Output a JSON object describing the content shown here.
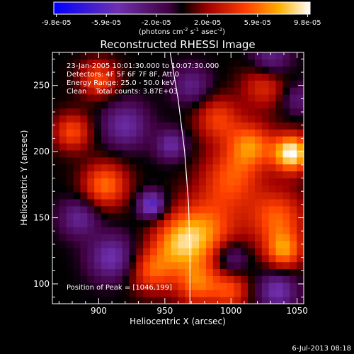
{
  "chart_data": {
    "type": "heatmap",
    "title": "Reconstructed RHESSI Image",
    "xlabel": "Heliocentric X (arcsec)",
    "ylabel": "Heliocentric Y (arcsec)",
    "xlim": [
      865,
      1055
    ],
    "ylim": [
      85,
      275
    ],
    "x_ticks": [
      900,
      950,
      1000,
      1050
    ],
    "y_ticks": [
      100,
      150,
      200,
      250
    ],
    "colorbar": {
      "tick_labels": [
        "-9.8e-05",
        "-5.9e-05",
        "-2.0e-05",
        "2.0e-05",
        "5.9e-05",
        "9.8e-05"
      ],
      "tick_values": [
        -9.8e-05,
        -5.9e-05,
        -2e-05,
        2e-05,
        5.9e-05,
        9.8e-05
      ],
      "units_base": "(photons cm",
      "units_exp1": "-2",
      "units_mid": " s",
      "units_exp2": "-1",
      "units_end": " asec",
      "units_exp3": "-2",
      "units_close": ")"
    },
    "info_lines": [
      "23-Jan-2005 10:01:30.000 to 10:07:30.000",
      "Detectors: 4F 5F 6F 7F 8F, Att 0",
      "Energy Range: 25.0 - 50.0 keV",
      "Clean    Total counts: 3.87E+03"
    ],
    "peak_label": "Position of Peak = [1046,199]",
    "peak_position": [
      1046,
      199
    ],
    "limb_curve": [
      [
        954,
        275
      ],
      [
        960,
        240
      ],
      [
        965,
        200
      ],
      [
        968,
        160
      ],
      [
        969,
        120
      ],
      [
        969,
        85
      ]
    ],
    "sources": [
      {
        "x": 1046,
        "y": 199,
        "sigma": 10,
        "amp": 1.0
      },
      {
        "x": 1015,
        "y": 205,
        "sigma": 12,
        "amp": 0.6
      },
      {
        "x": 1035,
        "y": 150,
        "sigma": 15,
        "amp": 0.55
      },
      {
        "x": 1040,
        "y": 125,
        "sigma": 10,
        "amp": 0.6
      },
      {
        "x": 1000,
        "y": 180,
        "sigma": 16,
        "amp": 0.5
      },
      {
        "x": 980,
        "y": 140,
        "sigma": 18,
        "amp": 0.6
      },
      {
        "x": 960,
        "y": 130,
        "sigma": 14,
        "amp": 0.55
      },
      {
        "x": 940,
        "y": 110,
        "sigma": 12,
        "amp": 0.5
      },
      {
        "x": 905,
        "y": 175,
        "sigma": 12,
        "amp": 0.6
      },
      {
        "x": 880,
        "y": 215,
        "sigma": 10,
        "amp": 0.5
      },
      {
        "x": 900,
        "y": 255,
        "sigma": 10,
        "amp": 0.5
      },
      {
        "x": 990,
        "y": 225,
        "sigma": 12,
        "amp": 0.45
      },
      {
        "x": 975,
        "y": 100,
        "sigma": 12,
        "amp": 0.55
      },
      {
        "x": 1000,
        "y": 95,
        "sigma": 10,
        "amp": 0.45
      },
      {
        "x": 1025,
        "y": 250,
        "sigma": 12,
        "amp": 0.4
      },
      {
        "x": 940,
        "y": 160,
        "sigma": 7,
        "amp": -0.7
      },
      {
        "x": 910,
        "y": 120,
        "sigma": 12,
        "amp": -0.5
      },
      {
        "x": 920,
        "y": 220,
        "sigma": 12,
        "amp": -0.45
      },
      {
        "x": 955,
        "y": 205,
        "sigma": 8,
        "amp": -0.45
      },
      {
        "x": 1035,
        "y": 95,
        "sigma": 10,
        "amp": -0.5
      },
      {
        "x": 1030,
        "y": 270,
        "sigma": 10,
        "amp": -0.4
      },
      {
        "x": 1000,
        "y": 120,
        "sigma": 9,
        "amp": -0.4
      },
      {
        "x": 885,
        "y": 150,
        "sigma": 10,
        "amp": -0.4
      },
      {
        "x": 1050,
        "y": 240,
        "sigma": 8,
        "amp": -0.3
      },
      {
        "x": 970,
        "y": 250,
        "sigma": 10,
        "amp": -0.35
      }
    ]
  },
  "footer": {
    "timestamp": "6-Jul-2013 08:18"
  }
}
